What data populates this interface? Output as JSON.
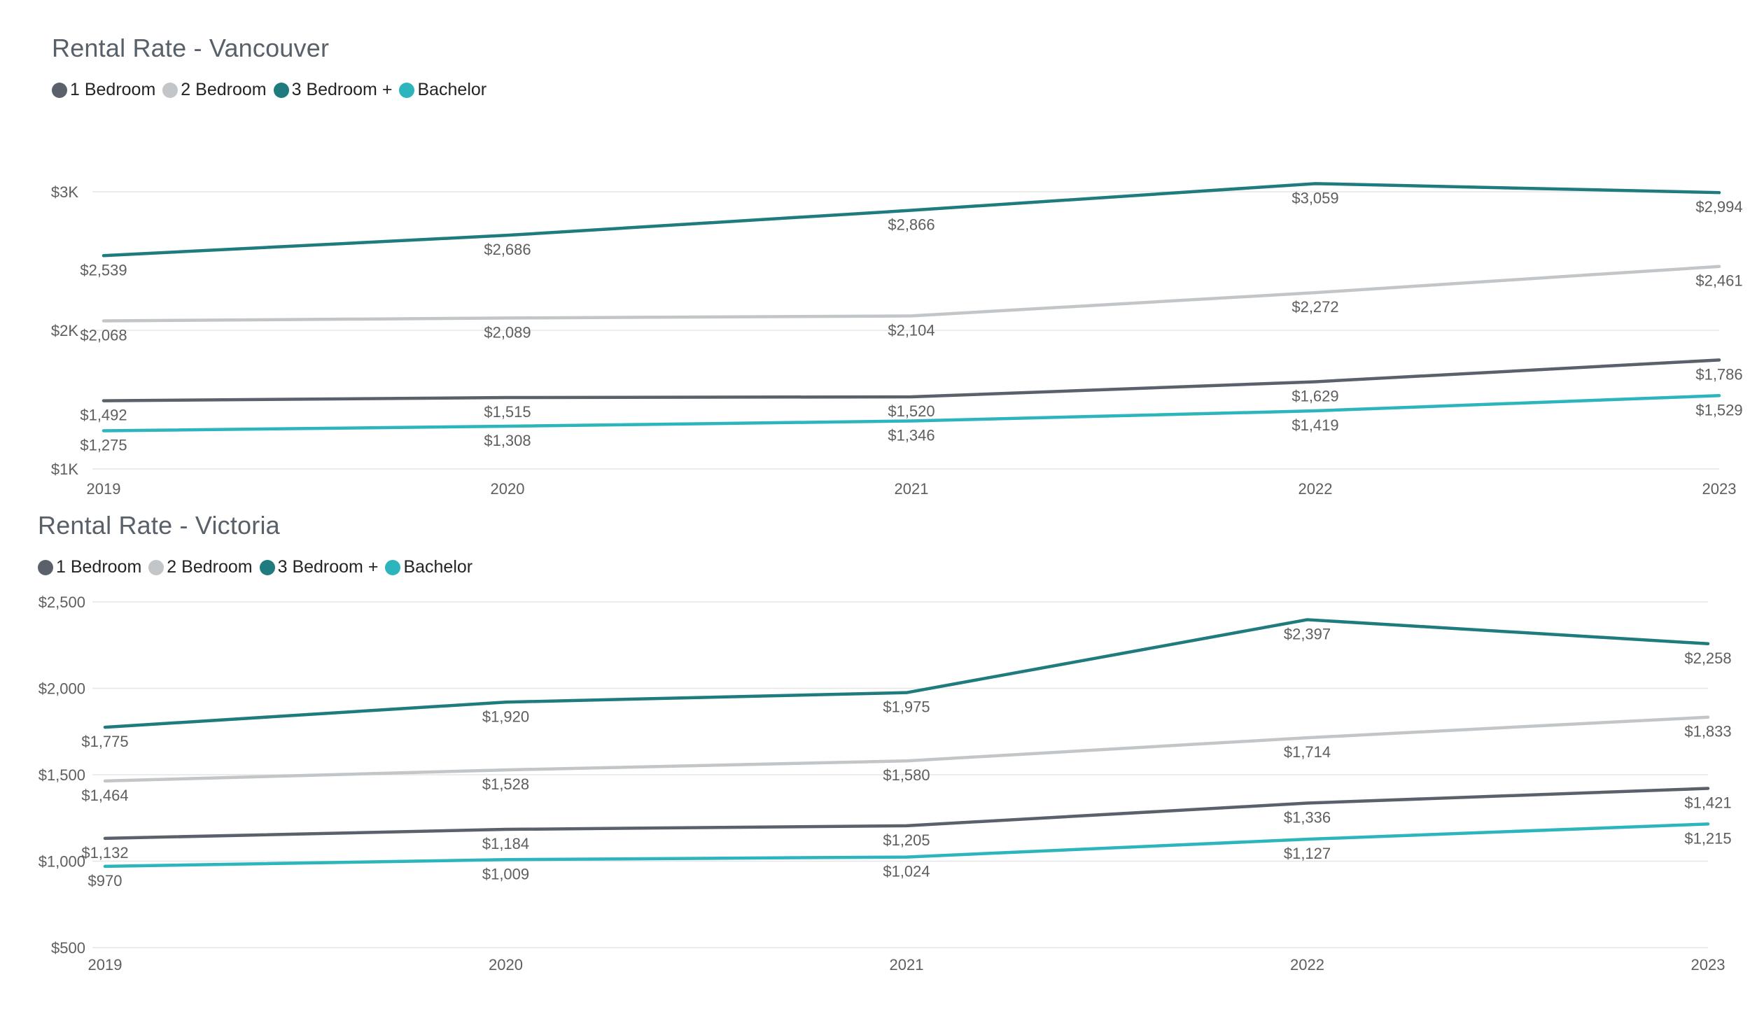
{
  "charts": [
    {
      "title": "Rental Rate - Vancouver",
      "legend": [
        {
          "label": "1 Bedroom",
          "color": "#5b616b"
        },
        {
          "label": "2 Bedroom",
          "color": "#c3c6c9"
        },
        {
          "label": "3 Bedroom +",
          "color": "#1f7b7e"
        },
        {
          "label": "Bachelor",
          "color": "#2cb5bc"
        }
      ]
    },
    {
      "title": "Rental Rate - Victoria",
      "legend": [
        {
          "label": "1 Bedroom",
          "color": "#5b616b"
        },
        {
          "label": "2 Bedroom",
          "color": "#c3c6c9"
        },
        {
          "label": "3 Bedroom +",
          "color": "#1f7b7e"
        },
        {
          "label": "Bachelor",
          "color": "#2cb5bc"
        }
      ]
    }
  ],
  "chart_data": [
    {
      "type": "line",
      "title": "Rental Rate - Vancouver",
      "x": [
        "2019",
        "2020",
        "2021",
        "2022",
        "2023"
      ],
      "ylim": [
        1000,
        3000
      ],
      "y_ticks": [
        1000,
        2000,
        3000
      ],
      "y_tick_labels": [
        "$1K",
        "$2K",
        "$3K"
      ],
      "grid": true,
      "legend_position": "top-left",
      "series": [
        {
          "name": "1 Bedroom",
          "color": "#5b616b",
          "values": [
            1492,
            1515,
            1520,
            1629,
            1786
          ],
          "labels": [
            "$1,492",
            "$1,515",
            "$1,520",
            "$1,629",
            "$1,786"
          ]
        },
        {
          "name": "2 Bedroom",
          "color": "#c3c6c9",
          "values": [
            2068,
            2089,
            2104,
            2272,
            2461
          ],
          "labels": [
            "$2,068",
            "$2,089",
            "$2,104",
            "$2,272",
            "$2,461"
          ]
        },
        {
          "name": "3 Bedroom +",
          "color": "#1f7b7e",
          "values": [
            2539,
            2686,
            2866,
            3059,
            2994
          ],
          "labels": [
            "$2,539",
            "$2,686",
            "$2,866",
            "$3,059",
            "$2,994"
          ]
        },
        {
          "name": "Bachelor",
          "color": "#2cb5bc",
          "values": [
            1275,
            1308,
            1346,
            1419,
            1529
          ],
          "labels": [
            "$1,275",
            "$1,308",
            "$1,346",
            "$1,419",
            "$1,529"
          ]
        }
      ]
    },
    {
      "type": "line",
      "title": "Rental Rate - Victoria",
      "x": [
        "2019",
        "2020",
        "2021",
        "2022",
        "2023"
      ],
      "ylim": [
        500,
        2500
      ],
      "y_ticks": [
        500,
        1000,
        1500,
        2000,
        2500
      ],
      "y_tick_labels": [
        "$500",
        "$1,000",
        "$1,500",
        "$2,000",
        "$2,500"
      ],
      "grid": true,
      "legend_position": "top-left",
      "series": [
        {
          "name": "1 Bedroom",
          "color": "#5b616b",
          "values": [
            1132,
            1184,
            1205,
            1336,
            1421
          ],
          "labels": [
            "$1,132",
            "$1,184",
            "$1,205",
            "$1,336",
            "$1,421"
          ]
        },
        {
          "name": "2 Bedroom",
          "color": "#c3c6c9",
          "values": [
            1464,
            1528,
            1580,
            1714,
            1833
          ],
          "labels": [
            "$1,464",
            "$1,528",
            "$1,580",
            "$1,714",
            "$1,833"
          ]
        },
        {
          "name": "3 Bedroom +",
          "color": "#1f7b7e",
          "values": [
            1775,
            1920,
            1975,
            2397,
            2258
          ],
          "labels": [
            "$1,775",
            "$1,920",
            "$1,975",
            "$2,397",
            "$2,258"
          ]
        },
        {
          "name": "Bachelor",
          "color": "#2cb5bc",
          "values": [
            970,
            1009,
            1024,
            1127,
            1215
          ],
          "labels": [
            "$970",
            "$1,009",
            "$1,024",
            "$1,127",
            "$1,215"
          ]
        }
      ]
    }
  ]
}
